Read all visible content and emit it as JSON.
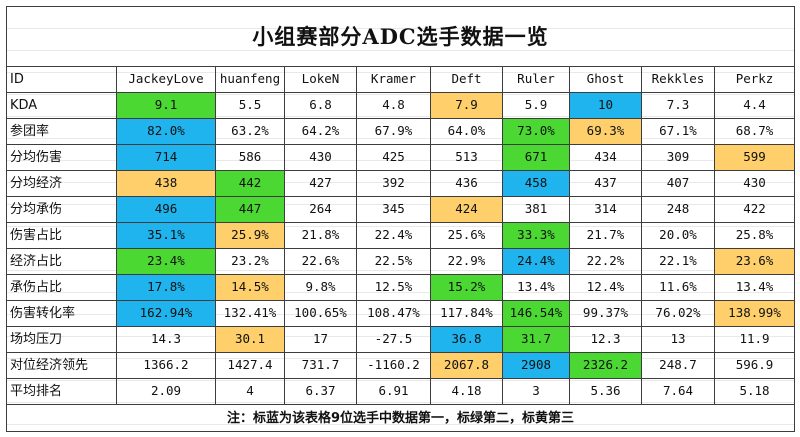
{
  "title": "小组赛部分ADC选手数据一览",
  "note": "注：标蓝为该表格9位选手中数据第一，标绿第二，标黄第三",
  "colors": {
    "blue": "#1fb4ed",
    "green": "#4cd832",
    "yellow": "#fecf6a"
  },
  "header": {
    "label": "ID",
    "players": [
      "JackeyLove",
      "huanfeng",
      "LokeN",
      "Kramer",
      "Deft",
      "Ruler",
      "Ghost",
      "Rekkles",
      "Perkz"
    ]
  },
  "rows": [
    {
      "label": "KDA",
      "values": [
        "9.1",
        "5.5",
        "6.8",
        "4.8",
        "7.9",
        "5.9",
        "10",
        "7.3",
        "4.4"
      ],
      "highlights": [
        "green",
        "",
        "",
        "",
        "yellow",
        "",
        "blue",
        "",
        ""
      ]
    },
    {
      "label": "参团率",
      "values": [
        "82.0%",
        "63.2%",
        "64.2%",
        "67.9%",
        "64.0%",
        "73.0%",
        "69.3%",
        "67.1%",
        "68.7%"
      ],
      "highlights": [
        "blue",
        "",
        "",
        "",
        "",
        "green",
        "yellow",
        "",
        ""
      ]
    },
    {
      "label": "分均伤害",
      "values": [
        "714",
        "586",
        "430",
        "425",
        "513",
        "671",
        "434",
        "309",
        "599"
      ],
      "highlights": [
        "blue",
        "",
        "",
        "",
        "",
        "green",
        "",
        "",
        "yellow"
      ]
    },
    {
      "label": "分均经济",
      "values": [
        "438",
        "442",
        "427",
        "392",
        "436",
        "458",
        "437",
        "407",
        "430"
      ],
      "highlights": [
        "yellow",
        "green",
        "",
        "",
        "",
        "blue",
        "",
        "",
        ""
      ]
    },
    {
      "label": "分均承伤",
      "values": [
        "496",
        "447",
        "264",
        "345",
        "424",
        "381",
        "314",
        "248",
        "422"
      ],
      "highlights": [
        "blue",
        "green",
        "",
        "",
        "yellow",
        "",
        "",
        "",
        ""
      ]
    },
    {
      "label": "伤害占比",
      "values": [
        "35.1%",
        "25.9%",
        "21.8%",
        "22.4%",
        "25.6%",
        "33.3%",
        "21.7%",
        "20.0%",
        "25.8%"
      ],
      "highlights": [
        "blue",
        "yellow",
        "",
        "",
        "",
        "green",
        "",
        "",
        ""
      ]
    },
    {
      "label": "经济占比",
      "values": [
        "23.4%",
        "23.2%",
        "22.6%",
        "22.5%",
        "22.9%",
        "24.4%",
        "22.2%",
        "22.1%",
        "23.6%"
      ],
      "highlights": [
        "green",
        "",
        "",
        "",
        "",
        "blue",
        "",
        "",
        "yellow"
      ]
    },
    {
      "label": "承伤占比",
      "values": [
        "17.8%",
        "14.5%",
        "9.8%",
        "12.5%",
        "15.2%",
        "13.4%",
        "12.4%",
        "11.6%",
        "13.4%"
      ],
      "highlights": [
        "blue",
        "yellow",
        "",
        "",
        "green",
        "",
        "",
        "",
        ""
      ]
    },
    {
      "label": "伤害转化率",
      "values": [
        "162.94%",
        "132.41%",
        "100.65%",
        "108.47%",
        "117.84%",
        "146.54%",
        "99.37%",
        "76.02%",
        "138.99%"
      ],
      "highlights": [
        "blue",
        "",
        "",
        "",
        "",
        "green",
        "",
        "",
        "yellow"
      ]
    },
    {
      "label": "场均压刀",
      "values": [
        "14.3",
        "30.1",
        "17",
        "-27.5",
        "36.8",
        "31.7",
        "12.3",
        "13",
        "11.9"
      ],
      "highlights": [
        "",
        "yellow",
        "",
        "",
        "blue",
        "green",
        "",
        "",
        ""
      ]
    },
    {
      "label": "对位经济领先",
      "values": [
        "1366.2",
        "1427.4",
        "731.7",
        "-1160.2",
        "2067.8",
        "2908",
        "2326.2",
        "248.7",
        "596.9"
      ],
      "highlights": [
        "",
        "",
        "",
        "",
        "yellow",
        "blue",
        "green",
        "",
        ""
      ]
    },
    {
      "label": "平均排名",
      "values": [
        "2.09",
        "4",
        "6.37",
        "6.91",
        "4.18",
        "3",
        "5.36",
        "7.64",
        "5.18"
      ],
      "highlights": [
        "",
        "",
        "",
        "",
        "",
        "",
        "",
        "",
        ""
      ]
    }
  ]
}
